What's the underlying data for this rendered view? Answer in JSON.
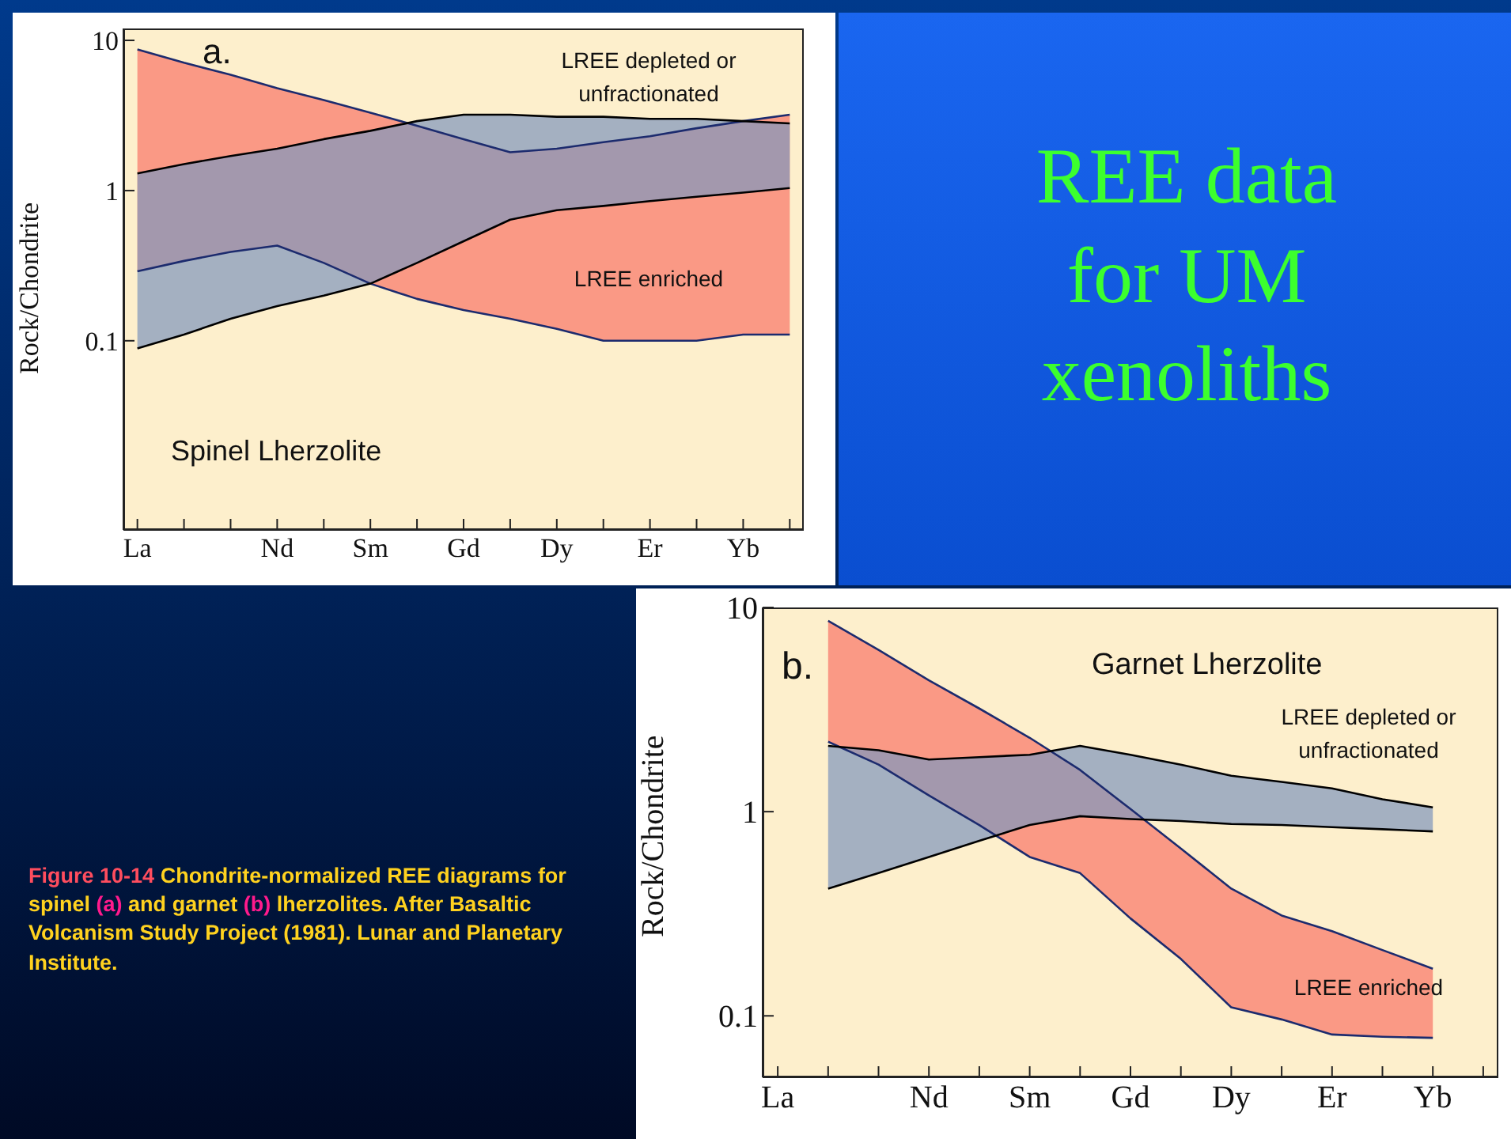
{
  "chart_data": [
    {
      "type": "line",
      "ylabel": "Rock/Chondrite",
      "categories": [
        "La",
        null,
        null,
        "Nd",
        null,
        "Sm",
        null,
        "Gd",
        null,
        "Dy",
        null,
        "Er",
        null,
        "Yb",
        null
      ],
      "log": "y",
      "ylim": [
        0.0055,
        12
      ],
      "yticks": [
        0.1,
        1,
        10
      ],
      "grid": false,
      "series": [
        {
          "color": "#1c2b6e",
          "values": [
            8.7,
            7.1,
            5.9,
            4.8,
            4.0,
            3.3,
            2.7,
            2.2,
            1.8,
            1.9,
            2.1,
            2.3,
            2.6,
            2.9,
            3.2
          ],
          "lower": [
            0.29,
            0.34,
            0.39,
            0.43,
            0.33,
            0.24,
            0.19,
            0.16,
            0.14,
            0.12,
            0.1,
            0.1,
            0.1,
            0.11,
            0.11
          ],
          "upper": [
            8.7,
            7.1,
            5.9,
            4.8,
            4.0,
            3.3,
            2.7,
            2.2,
            1.8,
            1.9,
            2.1,
            2.3,
            2.6,
            2.9,
            3.2
          ]
        },
        {
          "color": "#1c2b6e",
          "values": [
            0.29,
            0.34,
            0.39,
            0.43,
            0.33,
            0.24,
            0.19,
            0.16,
            0.14,
            0.12,
            0.1,
            0.1,
            0.1,
            0.11,
            0.11
          ]
        },
        {
          "color": "#000000",
          "values": [
            1.3,
            1.5,
            1.7,
            1.9,
            2.2,
            2.5,
            2.9,
            3.2,
            3.2,
            3.1,
            3.1,
            3.0,
            3.0,
            2.9,
            2.8
          ],
          "lower": [
            0.089,
            0.11,
            0.14,
            0.17,
            0.2,
            0.24,
            0.33,
            0.46,
            0.64,
            0.74,
            0.79,
            0.85,
            0.91,
            0.97,
            1.04
          ],
          "upper": [
            1.3,
            1.5,
            1.7,
            1.9,
            2.2,
            2.5,
            2.9,
            3.2,
            3.2,
            3.1,
            3.1,
            3.0,
            3.0,
            2.9,
            2.8
          ]
        },
        {
          "color": "#000000",
          "values": [
            0.089,
            0.11,
            0.14,
            0.17,
            0.2,
            0.24,
            0.33,
            0.46,
            0.64,
            0.74,
            0.79,
            0.85,
            0.91,
            0.97,
            1.04
          ]
        }
      ],
      "annotations": [
        "a.",
        "LREE depleted or unfractionated",
        "LREE enriched",
        "Spinel Lherzolite",
        "REE data for UM xenoliths",
        "Figure 10-14 Chondrite-normalized REE diagrams for spinel (a) and garnet (b) lherzolites. After Basaltic Volcanism Study Project (1981). Lunar and Planetary Institute."
      ]
    },
    {
      "type": "line",
      "ylabel": "Rock/Chondrite",
      "categories": [
        "La",
        null,
        null,
        "Nd",
        null,
        "Sm",
        null,
        "Gd",
        null,
        "Dy",
        null,
        "Er",
        null,
        "Yb",
        null
      ],
      "log": "y",
      "ylim": [
        0.05,
        10
      ],
      "yticks": [
        0.1,
        1,
        10
      ],
      "grid": false,
      "series": [
        {
          "color": "#1c2b6e",
          "values": [
            null,
            8.6,
            6.2,
            4.4,
            3.2,
            2.3,
            1.6,
            1.03,
            0.66,
            0.42,
            0.31,
            0.26,
            0.21,
            0.17,
            null
          ],
          "lower": [
            null,
            2.2,
            1.7,
            1.2,
            0.86,
            0.6,
            0.5,
            0.3,
            0.19,
            0.11,
            0.096,
            0.081,
            0.079,
            0.078,
            null
          ],
          "upper": [
            null,
            8.6,
            6.2,
            4.4,
            3.2,
            2.3,
            1.6,
            1.03,
            0.66,
            0.42,
            0.31,
            0.26,
            0.21,
            0.17,
            null
          ]
        },
        {
          "color": "#1c2b6e",
          "values": [
            null,
            2.2,
            1.7,
            1.2,
            0.86,
            0.6,
            0.5,
            0.3,
            0.19,
            0.11,
            0.096,
            0.081,
            0.079,
            0.078,
            null
          ]
        },
        {
          "color": "#000000",
          "values": [
            null,
            2.1,
            2.0,
            1.8,
            1.85,
            1.9,
            2.1,
            1.9,
            1.7,
            1.5,
            1.4,
            1.3,
            1.15,
            1.05,
            null
          ],
          "lower": [
            null,
            0.42,
            0.5,
            0.6,
            0.72,
            0.86,
            0.95,
            0.92,
            0.9,
            0.87,
            0.86,
            0.84,
            0.82,
            0.8,
            null
          ],
          "upper": [
            null,
            2.1,
            2.0,
            1.8,
            1.85,
            1.9,
            2.1,
            1.9,
            1.7,
            1.5,
            1.4,
            1.3,
            1.15,
            1.05,
            null
          ]
        },
        {
          "color": "#000000",
          "values": [
            null,
            0.42,
            0.5,
            0.6,
            0.72,
            0.86,
            0.95,
            0.92,
            0.9,
            0.87,
            0.86,
            0.84,
            0.82,
            0.8,
            null
          ]
        }
      ],
      "annotations": [
        "b.",
        "Garnet Lherzolite",
        "LREE depleted or unfractionated",
        "LREE enriched"
      ]
    }
  ]
}
